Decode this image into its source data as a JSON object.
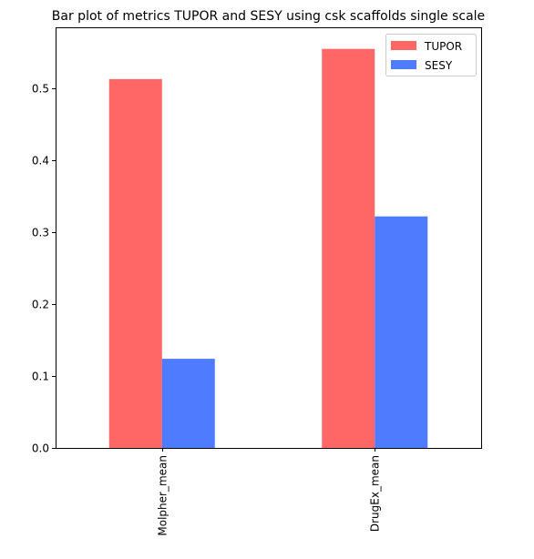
{
  "chart_data": {
    "type": "bar",
    "title": "Bar plot of metrics TUPOR and SESY using csk scaffolds single scale",
    "xlabel": "",
    "ylabel": "",
    "categories": [
      "Molpher_mean",
      "DrugEx_mean"
    ],
    "series": [
      {
        "name": "TUPOR",
        "values": [
          0.513,
          0.555
        ],
        "color": "#ff6666"
      },
      {
        "name": "SESY",
        "values": [
          0.124,
          0.322
        ],
        "color": "#4f7bff"
      }
    ],
    "ylim": [
      0,
      0.585
    ],
    "yticks": [
      "0.0",
      "0.1",
      "0.2",
      "0.3",
      "0.4",
      "0.5"
    ],
    "xtick_rotation": "vertical",
    "legend_position": "top-right",
    "grid": false
  }
}
